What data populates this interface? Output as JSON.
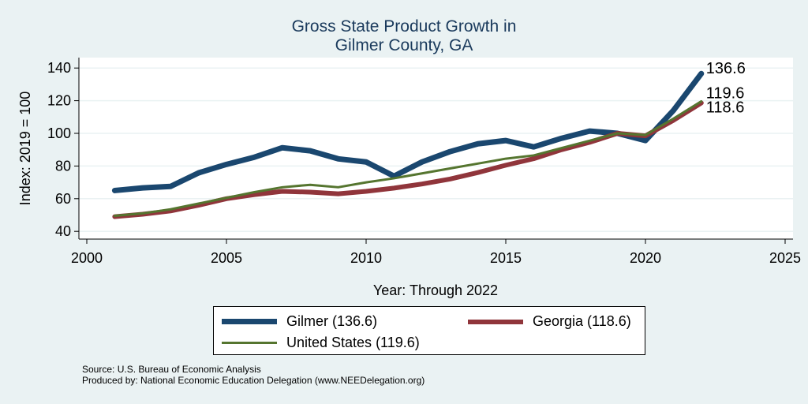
{
  "chart_data": {
    "type": "line",
    "title": [
      "Gross State Product Growth in",
      "Gilmer County, GA"
    ],
    "xlabel": "Year: Through 2022",
    "ylabel": "Index: 2019 = 100",
    "xlim": [
      2000,
      2025
    ],
    "ylim": [
      35,
      145
    ],
    "xticks": [
      2000,
      2005,
      2010,
      2015,
      2020,
      2025
    ],
    "yticks": [
      40,
      60,
      80,
      100,
      120,
      140
    ],
    "grid": true,
    "x": [
      2001,
      2002,
      2003,
      2004,
      2005,
      2006,
      2007,
      2008,
      2009,
      2010,
      2011,
      2012,
      2013,
      2014,
      2015,
      2016,
      2017,
      2018,
      2019,
      2020,
      2021,
      2022
    ],
    "series": [
      {
        "name": "Gilmer",
        "legend": "Gilmer  (136.6)",
        "end_label": "136.6",
        "color": "#1a476f",
        "width": 7,
        "values": [
          65,
          66.6,
          67.5,
          75.8,
          81,
          85.4,
          91.2,
          89.3,
          84.4,
          82.5,
          73.8,
          82.5,
          88.8,
          93.6,
          95.6,
          91.7,
          97,
          101.4,
          100,
          95.6,
          114,
          136.6
        ]
      },
      {
        "name": "Georgia",
        "legend": "Georgia (118.6)",
        "end_label": "118.6",
        "color": "#90353b",
        "width": 6,
        "values": [
          49,
          50.5,
          52.5,
          56,
          60,
          62.5,
          64.5,
          64,
          63,
          64.5,
          66.5,
          69,
          72,
          76,
          80.5,
          84.5,
          90,
          94.5,
          100,
          98.5,
          108,
          118.6
        ]
      },
      {
        "name": "United States",
        "legend": "United States (119.6)",
        "end_label": "119.6",
        "color": "#55752f",
        "width": 3,
        "values": [
          49.5,
          51,
          53.5,
          57,
          60.5,
          64,
          67,
          68.5,
          67,
          70,
          72.5,
          75.5,
          78.5,
          81.5,
          84.5,
          86.5,
          91,
          95.5,
          100,
          99,
          109,
          119.6
        ]
      }
    ],
    "legend_position": "bottom"
  },
  "notes": {
    "source": "Source: U.S. Bureau of Economic Analysis",
    "produced": "Produced by: National Economic Education Delegation (www.NEEDelegation.org)"
  }
}
